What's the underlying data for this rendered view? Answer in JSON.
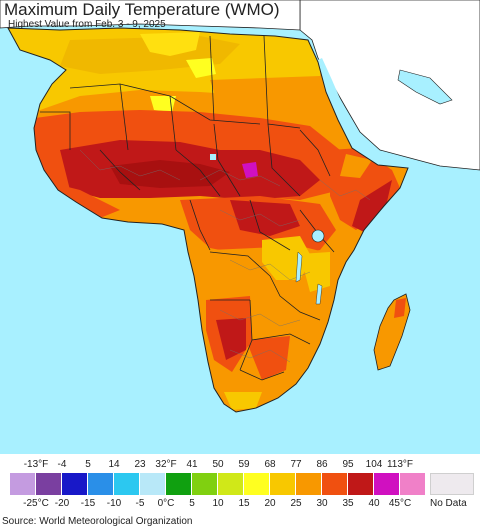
{
  "title": "Maximum Daily Temperature (WMO)",
  "subtitle": "Highest Value from Feb. 3 - 9, 2025",
  "source": "Source: World Meteorological Organization",
  "colors": {
    "ocean": "#a8f0ff",
    "land_other": "#ffffff",
    "borders": "#707070",
    "coast": "#222222"
  },
  "legend": {
    "fahrenheit_ticks": [
      "-13°F",
      "-4",
      "5",
      "14",
      "23",
      "32°F",
      "41",
      "50",
      "59",
      "68",
      "77",
      "86",
      "95",
      "104",
      "113°F"
    ],
    "celsius_ticks": [
      "-25°C",
      "-20",
      "-15",
      "-10",
      "-5",
      "0°C",
      "5",
      "10",
      "15",
      "20",
      "25",
      "30",
      "35",
      "40",
      "45°C"
    ],
    "swatch_colors": [
      "#c49be0",
      "#7a3fa0",
      "#1818c8",
      "#2a8fe8",
      "#2cc8f0",
      "#b8e8f8",
      "#10a010",
      "#80d010",
      "#d0e818",
      "#ffff20",
      "#f8c800",
      "#f89800",
      "#f05010",
      "#c01818",
      "#d010c0",
      "#f080c8"
    ],
    "no_data_label": "No Data",
    "no_data_color": "#eeeaee"
  }
}
